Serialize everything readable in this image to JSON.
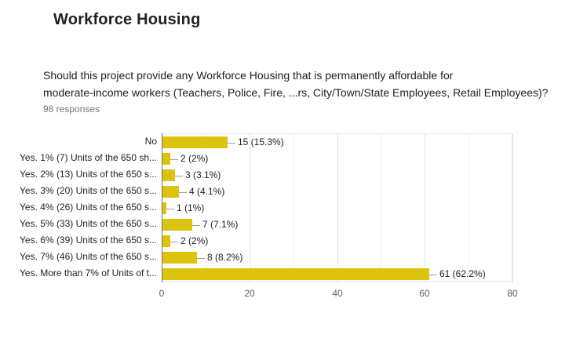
{
  "page": {
    "title": "Workforce Housing"
  },
  "question": {
    "lines": [
      "Should this project provide any Workforce Housing that is permanently affordable for",
      "moderate-income workers (Teachers, Police, Fire, ...rs, City/Town/State Employees, Retail Employees)?"
    ],
    "full_text": "Should this project provide any Workforce Housing that is permanently affordable for moderate-income workers (Teachers, Police, Fire, ...rs, City/Town/State Employees, Retail Employees)?",
    "responses_label": "98 responses"
  },
  "chart_data": {
    "type": "bar",
    "orientation": "horizontal",
    "title": "Should this project provide any Workforce Housing that is permanently affordable for moderate-income workers (Teachers, Police, Fire, ...rs, City/Town/State Employees, Retail Employees)?",
    "responses_count": 98,
    "categories": [
      "No",
      "Yes. 1% (7) Units of the 650 sh...",
      "Yes. 2% (13) Units of the 650 s...",
      "Yes. 3% (20) Units of the 650 s...",
      "Yes. 4% (26) Units of the 650 s...",
      "Yes. 5% (33) Units of the 650 s...",
      "Yes. 6% (39) Units of the 650 s...",
      "Yes. 7% (46) Units of the 650 s...",
      "Yes. More than 7% of Units of t..."
    ],
    "values": [
      15,
      2,
      3,
      4,
      1,
      7,
      2,
      8,
      61
    ],
    "value_labels": [
      "15 (15.3%)",
      "2 (2%)",
      "3 (3.1%)",
      "4 (4.1%)",
      "1 (1%)",
      "7 (7.1%)",
      "2 (2%)",
      "8 (8.2%)",
      "61 (62.2%)"
    ],
    "percentages": [
      15.3,
      2,
      3.1,
      4.1,
      1,
      7.1,
      2,
      8.2,
      62.2
    ],
    "xlim": [
      0,
      80
    ],
    "x_ticks": [
      0,
      20,
      40,
      60,
      80
    ],
    "x_minor_ticks": [
      10,
      30,
      50,
      70
    ],
    "bar_color": "#dcc40e",
    "legend": "none",
    "grid": true
  }
}
